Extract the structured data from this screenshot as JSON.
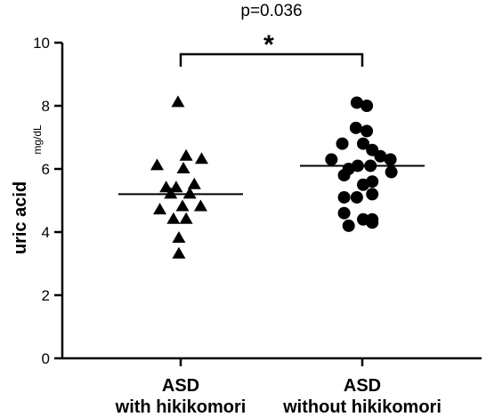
{
  "chart_data": {
    "type": "scatter",
    "title": "",
    "ylabel": "uric acid",
    "yunit": "mg/dL",
    "ylim": [
      0,
      10
    ],
    "yticks": [
      "0",
      "2",
      "4",
      "6",
      "8",
      "10"
    ],
    "grid": false,
    "categories": [
      {
        "line1": "ASD",
        "line2": "with hikikomori"
      },
      {
        "line1": "ASD",
        "line2": "without hikikomori"
      }
    ],
    "series": [
      {
        "category": 0,
        "marker": "triangle",
        "median": 5.2,
        "points": [
          [
            -0.03,
            8.1
          ],
          [
            -0.26,
            6.1
          ],
          [
            0.06,
            6.4
          ],
          [
            0.23,
            6.3
          ],
          [
            0.03,
            6.0
          ],
          [
            -0.16,
            5.4
          ],
          [
            -0.05,
            5.4
          ],
          [
            0.15,
            5.5
          ],
          [
            -0.11,
            5.2
          ],
          [
            0.1,
            5.2
          ],
          [
            -0.23,
            4.7
          ],
          [
            0.02,
            4.8
          ],
          [
            0.22,
            4.8
          ],
          [
            -0.08,
            4.4
          ],
          [
            0.06,
            4.4
          ],
          [
            -0.02,
            3.8
          ],
          [
            -0.02,
            3.3
          ]
        ]
      },
      {
        "category": 1,
        "marker": "circle",
        "median": 6.1,
        "points": [
          [
            -0.06,
            8.1
          ],
          [
            0.05,
            8.0
          ],
          [
            -0.07,
            7.3
          ],
          [
            0.05,
            7.2
          ],
          [
            -0.22,
            6.8
          ],
          [
            0.01,
            6.8
          ],
          [
            0.11,
            6.6
          ],
          [
            -0.34,
            6.3
          ],
          [
            0.2,
            6.4
          ],
          [
            0.31,
            6.3
          ],
          [
            -0.15,
            6.0
          ],
          [
            -0.05,
            6.1
          ],
          [
            0.09,
            6.1
          ],
          [
            0.32,
            5.9
          ],
          [
            -0.2,
            5.8
          ],
          [
            0.01,
            5.5
          ],
          [
            0.11,
            5.6
          ],
          [
            -0.2,
            5.1
          ],
          [
            -0.06,
            5.1
          ],
          [
            0.11,
            5.2
          ],
          [
            -0.2,
            4.6
          ],
          [
            0.01,
            4.4
          ],
          [
            0.11,
            4.4
          ],
          [
            -0.15,
            4.2
          ],
          [
            0.11,
            4.3
          ]
        ]
      }
    ],
    "annotation": {
      "pvalue": "p=0.036",
      "significance": "*"
    }
  }
}
